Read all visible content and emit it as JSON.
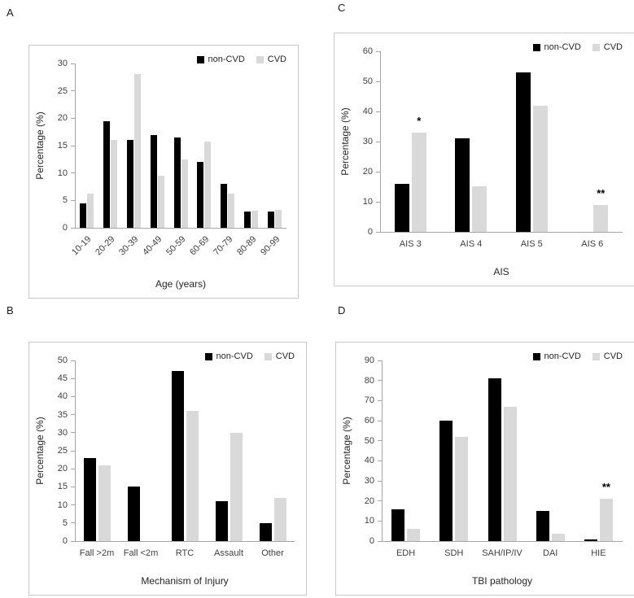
{
  "figure": {
    "panel_labels": [
      "A",
      "B",
      "C",
      "D"
    ]
  },
  "colors": {
    "non_cvd": "#000000",
    "cvd": "#d9d9d9",
    "axis_line": "#a6a6a6",
    "text": "#404040"
  },
  "chart_data": [
    {
      "panel": "A",
      "type": "bar",
      "title": "",
      "xlabel": "Age (years)",
      "ylabel": "Percentage (%)",
      "ylim": [
        0,
        30
      ],
      "ytick_step": 5,
      "grid": false,
      "legend_position": "top-right",
      "x_label_rotation": 45,
      "categories": [
        "10-19",
        "20-29",
        "30-39",
        "40-49",
        "50-59",
        "60-69",
        "70-79",
        "80-89",
        "90-99"
      ],
      "series": [
        {
          "name": "non-CVD",
          "color": "#000000",
          "values": [
            4.5,
            19.5,
            16,
            17,
            16.5,
            12,
            8,
            3,
            3
          ]
        },
        {
          "name": "CVD",
          "color": "#d9d9d9",
          "values": [
            6.3,
            16,
            28,
            9.5,
            12.5,
            15.7,
            6.3,
            3.1,
            3.2
          ]
        }
      ],
      "annotations": []
    },
    {
      "panel": "B",
      "type": "bar",
      "title": "",
      "xlabel": "Mechanism of Injury",
      "ylabel": "Percentage (%)",
      "ylim": [
        0,
        50
      ],
      "ytick_step": 5,
      "grid": false,
      "legend_position": "top-right",
      "x_label_rotation": 0,
      "categories": [
        "Fall >2m",
        "Fall <2m",
        "RTC",
        "Assault",
        "Other"
      ],
      "series": [
        {
          "name": "non-CVD",
          "color": "#000000",
          "values": [
            23,
            15,
            47,
            11,
            5
          ]
        },
        {
          "name": "CVD",
          "color": "#d9d9d9",
          "values": [
            21,
            0,
            36,
            30,
            12
          ]
        }
      ],
      "annotations": []
    },
    {
      "panel": "C",
      "type": "bar",
      "title": "",
      "xlabel": "AIS",
      "ylabel": "Percentage (%)",
      "ylim": [
        0,
        60
      ],
      "ytick_step": 10,
      "grid": false,
      "legend_position": "top-right",
      "x_label_rotation": 0,
      "categories": [
        "AIS 3",
        "AIS 4",
        "AIS 5",
        "AIS 6"
      ],
      "series": [
        {
          "name": "non-CVD",
          "color": "#000000",
          "values": [
            16,
            31,
            53,
            0
          ]
        },
        {
          "name": "CVD",
          "color": "#d9d9d9",
          "values": [
            33,
            15,
            42,
            9
          ]
        }
      ],
      "annotations": [
        {
          "category": "AIS 3",
          "series": "CVD",
          "text": "*"
        },
        {
          "category": "AIS 6",
          "series": "CVD",
          "text": "**"
        }
      ]
    },
    {
      "panel": "D",
      "type": "bar",
      "title": "",
      "xlabel": "TBI pathology",
      "ylabel": "Percentage (%)",
      "ylim": [
        0,
        90
      ],
      "ytick_step": 10,
      "grid": false,
      "legend_position": "top-right",
      "x_label_rotation": 0,
      "categories": [
        "EDH",
        "SDH",
        "SAH/IP/IV",
        "DAI",
        "HIE"
      ],
      "series": [
        {
          "name": "non-CVD",
          "color": "#000000",
          "values": [
            16,
            60,
            81,
            15,
            1
          ]
        },
        {
          "name": "CVD",
          "color": "#d9d9d9",
          "values": [
            6,
            52,
            67,
            3.5,
            21
          ]
        }
      ],
      "annotations": [
        {
          "category": "HIE",
          "series": "CVD",
          "text": "**"
        }
      ]
    }
  ]
}
